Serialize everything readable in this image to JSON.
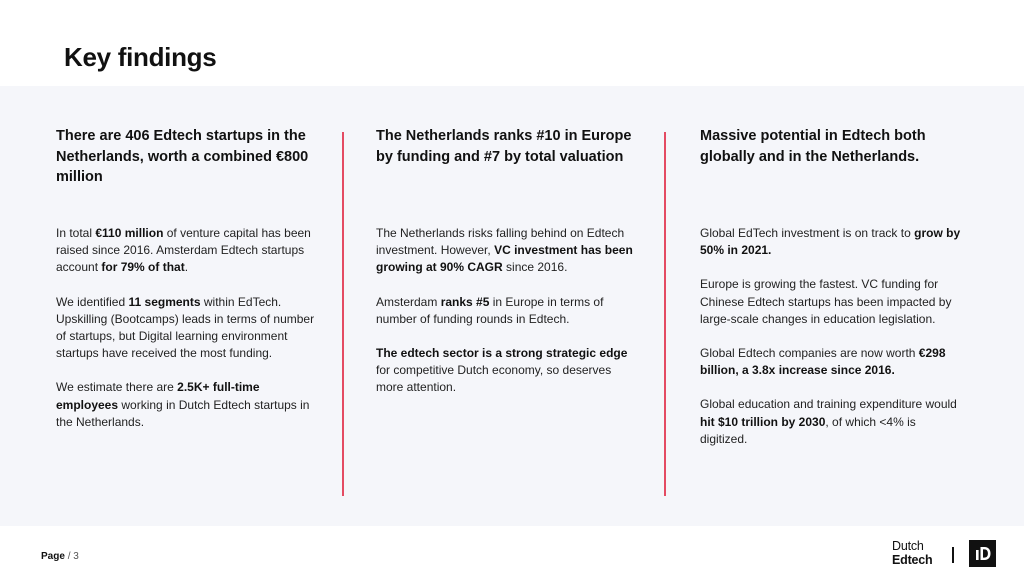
{
  "page": {
    "title": "Key findings",
    "page_label": "Page",
    "page_number": "/ 3"
  },
  "columns": [
    {
      "heading": "There are 406 Edtech startups in the Netherlands, worth a combined €800 million",
      "paragraphs": [
        [
          {
            "t": "In total "
          },
          {
            "t": "€110 million",
            "b": true
          },
          {
            "t": " of venture capital has been raised since 2016. Amsterdam Edtech startups account "
          },
          {
            "t": "for 79% of that",
            "b": true
          },
          {
            "t": "."
          }
        ],
        [
          {
            "t": "We identified "
          },
          {
            "t": "11 segments",
            "b": true
          },
          {
            "t": " within EdTech. Upskilling (Bootcamps) leads in terms of number of startups, but Digital learning environment startups have received the most funding."
          }
        ],
        [
          {
            "t": "We estimate there are "
          },
          {
            "t": "2.5K+ full-time employees",
            "b": true
          },
          {
            "t": " working in Dutch Edtech startups in the Netherlands."
          }
        ]
      ]
    },
    {
      "heading": "The Netherlands ranks #10 in Europe by funding and #7 by total valuation",
      "paragraphs": [
        [
          {
            "t": "The Netherlands risks falling behind on Edtech investment. However, "
          },
          {
            "t": "VC investment has been growing at 90% CAGR",
            "b": true
          },
          {
            "t": " since 2016."
          }
        ],
        [
          {
            "t": "Amsterdam "
          },
          {
            "t": "ranks #5",
            "b": true
          },
          {
            "t": " in Europe in terms of number of funding rounds in Edtech."
          }
        ],
        [
          {
            "t": "The edtech sector is a strong strategic edge",
            "b": true
          },
          {
            "t": " for competitive Dutch economy, so deserves more attention."
          }
        ]
      ]
    },
    {
      "heading": "Massive potential in Edtech both globally and in the Netherlands.",
      "paragraphs": [
        [
          {
            "t": "Global EdTech investment is on track to "
          },
          {
            "t": "grow by 50% in 2021.",
            "b": true
          }
        ],
        [
          {
            "t": "Europe is growing the fastest. VC funding for Chinese Edtech startups has been impacted by large-scale changes in education legislation."
          }
        ],
        [
          {
            "t": "Global Edtech companies are now worth "
          },
          {
            "t": "€298 billion, a 3.8x increase since 2016.",
            "b": true
          }
        ],
        [
          {
            "t": "Global education and training expenditure would "
          },
          {
            "t": "hit $10 trillion by 2030",
            "b": true
          },
          {
            "t": ", of which <4% is digitized."
          }
        ]
      ]
    }
  ],
  "logo": {
    "line1": "Dutch",
    "line2": "Edtech",
    "mark_text": "ıD"
  },
  "colors": {
    "accent": "#e44b62",
    "panel_bg": "#f5f6fa"
  }
}
